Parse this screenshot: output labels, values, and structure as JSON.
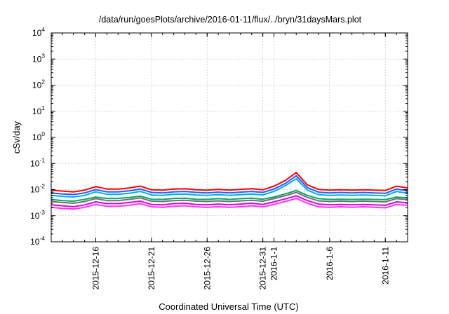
{
  "chart_data": {
    "type": "line",
    "title": "/data/run/goesPlots/archive/2016-01-11/flux/../bryn/31daysMars.plot",
    "xlabel": "Coordinated Universal Time (UTC)",
    "ylabel": "cSv/day",
    "y_scale": "log",
    "ylim": [
      0.0001,
      10000
    ],
    "xlim": [
      "2015-12-12",
      "2016-01-13"
    ],
    "grid": true,
    "legend": "none",
    "y_ticks": [
      {
        "base": "10",
        "exp": "-4"
      },
      {
        "base": "10",
        "exp": "-3"
      },
      {
        "base": "10",
        "exp": "-2"
      },
      {
        "base": "10",
        "exp": "-1"
      },
      {
        "base": "10",
        "exp": "0"
      },
      {
        "base": "10",
        "exp": "1"
      },
      {
        "base": "10",
        "exp": "2"
      },
      {
        "base": "10",
        "exp": "3"
      },
      {
        "base": "10",
        "exp": "4"
      }
    ],
    "x_ticks": [
      {
        "date": "2015-12-16",
        "label": "2015-12-16"
      },
      {
        "date": "2015-12-21",
        "label": "2015-12-21"
      },
      {
        "date": "2015-12-26",
        "label": "2015-12-26"
      },
      {
        "date": "2015-12-31",
        "label": "2015-12-31"
      },
      {
        "date": "2016-01-01",
        "label": "2016-1-1"
      },
      {
        "date": "2016-01-06",
        "label": "2016-1-6"
      },
      {
        "date": "2016-01-11",
        "label": "2016-1-11"
      }
    ],
    "x_dates": [
      "2015-12-12",
      "2015-12-13",
      "2015-12-14",
      "2015-12-15",
      "2015-12-16",
      "2015-12-17",
      "2015-12-18",
      "2015-12-19",
      "2015-12-20",
      "2015-12-21",
      "2015-12-22",
      "2015-12-23",
      "2015-12-24",
      "2015-12-25",
      "2015-12-26",
      "2015-12-27",
      "2015-12-28",
      "2015-12-29",
      "2015-12-30",
      "2015-12-31",
      "2016-01-01",
      "2016-01-02",
      "2016-01-03",
      "2016-01-04",
      "2016-01-05",
      "2016-01-06",
      "2016-01-07",
      "2016-01-08",
      "2016-01-09",
      "2016-01-10",
      "2016-01-11",
      "2016-01-12",
      "2016-01-13"
    ],
    "series": [
      {
        "color": "#ff0000",
        "values": [
          0.0095,
          0.0088,
          0.0082,
          0.0095,
          0.013,
          0.0105,
          0.0105,
          0.0115,
          0.0135,
          0.0098,
          0.0095,
          0.0105,
          0.0108,
          0.0098,
          0.0095,
          0.0102,
          0.0095,
          0.0102,
          0.0108,
          0.0098,
          0.0135,
          0.022,
          0.045,
          0.015,
          0.0102,
          0.0095,
          0.0098,
          0.0095,
          0.0098,
          0.0095,
          0.0092,
          0.0135,
          0.0115
        ]
      },
      {
        "color": "#1f5fff",
        "values": [
          0.0075,
          0.0068,
          0.0065,
          0.0075,
          0.01,
          0.0082,
          0.0082,
          0.009,
          0.0105,
          0.0078,
          0.0075,
          0.0082,
          0.0085,
          0.0078,
          0.0075,
          0.008,
          0.0075,
          0.008,
          0.0085,
          0.0078,
          0.0105,
          0.017,
          0.034,
          0.0118,
          0.008,
          0.0075,
          0.0078,
          0.0075,
          0.0078,
          0.0075,
          0.0072,
          0.0105,
          0.009
        ]
      },
      {
        "color": "#00aaff",
        "values": [
          0.006,
          0.0055,
          0.0052,
          0.006,
          0.0082,
          0.0066,
          0.0066,
          0.0072,
          0.0085,
          0.0062,
          0.006,
          0.0066,
          0.0068,
          0.0062,
          0.006,
          0.0064,
          0.006,
          0.0064,
          0.0068,
          0.0062,
          0.0085,
          0.014,
          0.026,
          0.0095,
          0.0064,
          0.006,
          0.0062,
          0.006,
          0.0062,
          0.006,
          0.0058,
          0.0085,
          0.0072
        ]
      },
      {
        "color": "#00aa66",
        "values": [
          0.0042,
          0.0038,
          0.0036,
          0.0042,
          0.0052,
          0.0046,
          0.0046,
          0.005,
          0.0056,
          0.0043,
          0.0042,
          0.0046,
          0.0047,
          0.0043,
          0.0042,
          0.0045,
          0.0042,
          0.0045,
          0.0047,
          0.0043,
          0.0052,
          0.0068,
          0.0092,
          0.006,
          0.0045,
          0.0042,
          0.0043,
          0.0042,
          0.0043,
          0.0042,
          0.0041,
          0.0052,
          0.0048
        ]
      },
      {
        "color": "#707070",
        "values": [
          0.0035,
          0.0032,
          0.003,
          0.0035,
          0.0045,
          0.0038,
          0.0038,
          0.0042,
          0.0048,
          0.0036,
          0.0035,
          0.0038,
          0.0039,
          0.0036,
          0.0035,
          0.0037,
          0.0035,
          0.0037,
          0.0039,
          0.0036,
          0.0045,
          0.0058,
          0.0078,
          0.005,
          0.0037,
          0.0035,
          0.0036,
          0.0035,
          0.0036,
          0.0035,
          0.0034,
          0.0045,
          0.0041
        ]
      },
      {
        "color": "#e000e0",
        "values": [
          0.0026,
          0.0024,
          0.0022,
          0.0026,
          0.0034,
          0.0029,
          0.0029,
          0.0032,
          0.0036,
          0.0027,
          0.0026,
          0.0029,
          0.003,
          0.0027,
          0.0026,
          0.0028,
          0.0026,
          0.0028,
          0.003,
          0.0027,
          0.0034,
          0.0044,
          0.0058,
          0.0038,
          0.0028,
          0.0026,
          0.0027,
          0.0026,
          0.0027,
          0.0026,
          0.0025,
          0.0034,
          0.0031
        ]
      },
      {
        "color": "#ff33ff",
        "values": [
          0.0021,
          0.0019,
          0.0018,
          0.0021,
          0.0027,
          0.0023,
          0.0023,
          0.0025,
          0.0029,
          0.0022,
          0.0021,
          0.0023,
          0.0024,
          0.0022,
          0.0021,
          0.0022,
          0.0021,
          0.0022,
          0.0024,
          0.0022,
          0.0027,
          0.0035,
          0.0046,
          0.003,
          0.0022,
          0.0021,
          0.0022,
          0.0021,
          0.0022,
          0.0021,
          0.002,
          0.0027,
          0.0025
        ]
      }
    ]
  }
}
